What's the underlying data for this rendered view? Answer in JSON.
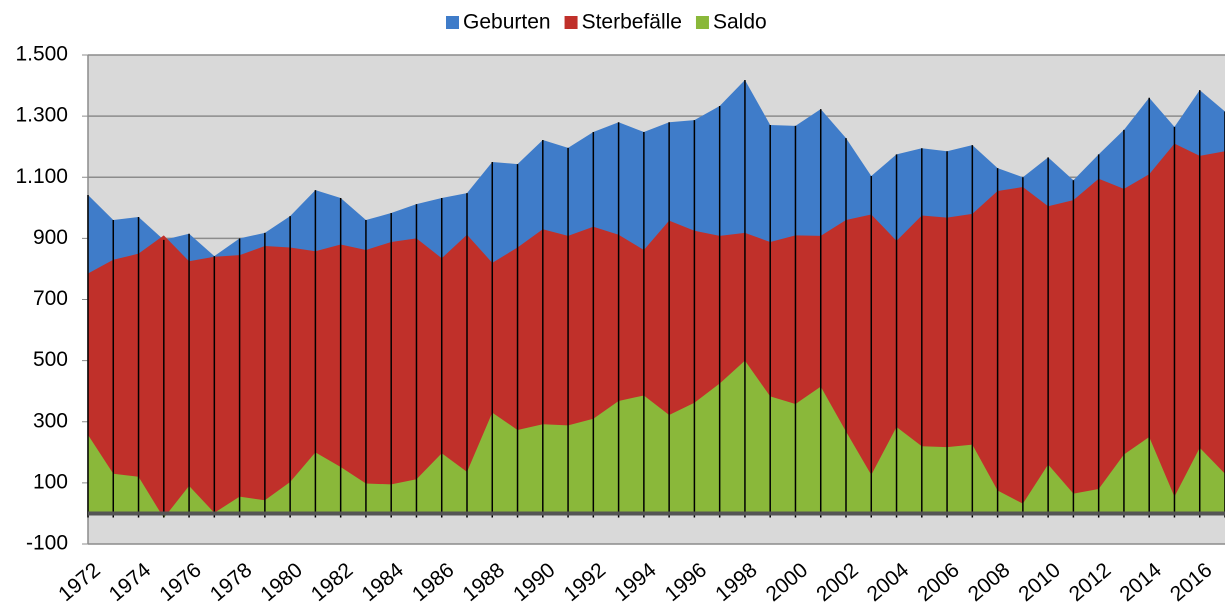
{
  "chart_data": {
    "type": "area",
    "categories": [
      "1972",
      null,
      "1974",
      null,
      "1976",
      null,
      "1978",
      null,
      "1980",
      null,
      "1982",
      null,
      "1984",
      null,
      "1986",
      null,
      "1988",
      null,
      "1990",
      null,
      "1992",
      null,
      "1994",
      null,
      "1996",
      null,
      "1998",
      null,
      "2000",
      null,
      "2002",
      null,
      "2004",
      null,
      "2006",
      null,
      "2008",
      null,
      "2010",
      null,
      "2012",
      null,
      "2014",
      null,
      "2016",
      null
    ],
    "series": [
      {
        "name": "Geburten",
        "color": "#3f7cc9",
        "values": [
          1042,
          960,
          970,
          895,
          915,
          842,
          900,
          918,
          973,
          1058,
          1032,
          960,
          983,
          1012,
          1032,
          1048,
          1150,
          1143,
          1222,
          1196,
          1248,
          1280,
          1248,
          1280,
          1287,
          1333,
          1418,
          1271,
          1268,
          1323,
          1228,
          1104,
          1175,
          1195,
          1185,
          1205,
          1130,
          1100,
          1165,
          1090,
          1175,
          1255,
          1360,
          1265,
          1385,
          1315
        ]
      },
      {
        "name": "Sterbefälle",
        "color": "#c0302a",
        "values": [
          785,
          830,
          850,
          910,
          825,
          840,
          845,
          875,
          870,
          858,
          880,
          862,
          888,
          900,
          835,
          912,
          820,
          870,
          930,
          908,
          938,
          912,
          862,
          958,
          925,
          908,
          918,
          888,
          910,
          908,
          960,
          978,
          892,
          975,
          968,
          980,
          1055,
          1068,
          1005,
          1025,
          1095,
          1062,
          1110,
          1210,
          1170,
          1185
        ]
      },
      {
        "name": "Saldo",
        "color": "#8ab83a",
        "values": [
          257,
          130,
          120,
          -15,
          90,
          2,
          55,
          43,
          103,
          200,
          152,
          98,
          95,
          112,
          197,
          136,
          330,
          273,
          292,
          288,
          310,
          368,
          386,
          322,
          362,
          425,
          500,
          383,
          358,
          415,
          268,
          126,
          283,
          220,
          217,
          225,
          75,
          32,
          160,
          65,
          80,
          193,
          250,
          55,
          215,
          130
        ]
      }
    ],
    "ylim": [
      -100,
      1500
    ],
    "yticks": [
      {
        "value": -100,
        "label": "-100"
      },
      100,
      300,
      500,
      700,
      900,
      {
        "value": 1100,
        "label": "1.100"
      },
      {
        "value": 1300,
        "label": "1.300"
      },
      {
        "value": 1500,
        "label": "1.500"
      }
    ],
    "grid": true,
    "legend": "top"
  }
}
